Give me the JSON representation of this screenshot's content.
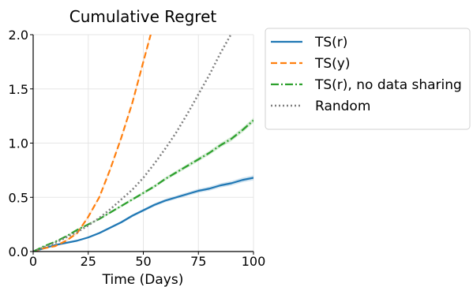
{
  "chart_data": {
    "type": "line",
    "title": "Cumulative Regret",
    "xlabel": "Time (Days)",
    "ylabel": "",
    "xlim": [
      0,
      100
    ],
    "ylim": [
      0,
      2.0
    ],
    "xticks": [
      0,
      25,
      50,
      75,
      100
    ],
    "xtick_labels": [
      "0",
      "25",
      "50",
      "75",
      "100"
    ],
    "yticks": [
      0,
      0.5,
      1.0,
      1.5,
      2.0
    ],
    "ytick_labels": [
      "0.0",
      "0.5",
      "1.0",
      "1.5",
      "2.0"
    ],
    "grid": true,
    "legend_position": "outside-right-top",
    "series": [
      {
        "name": "TS(r)",
        "color": "#1f77b4",
        "style": "solid",
        "band": true,
        "x": [
          0,
          5,
          10,
          15,
          20,
          25,
          30,
          35,
          40,
          45,
          50,
          55,
          60,
          65,
          70,
          75,
          80,
          85,
          90,
          95,
          100
        ],
        "y": [
          0,
          0.03,
          0.06,
          0.08,
          0.1,
          0.13,
          0.17,
          0.22,
          0.27,
          0.33,
          0.38,
          0.43,
          0.47,
          0.5,
          0.53,
          0.56,
          0.58,
          0.61,
          0.63,
          0.66,
          0.68
        ]
      },
      {
        "name": "TS(y)",
        "color": "#ff7f0e",
        "style": "dashed",
        "band": true,
        "x": [
          0,
          5,
          10,
          15,
          20,
          25,
          30,
          35,
          40,
          45,
          50,
          54
        ],
        "y": [
          0,
          0.03,
          0.05,
          0.1,
          0.17,
          0.32,
          0.5,
          0.76,
          1.05,
          1.37,
          1.75,
          2.05
        ]
      },
      {
        "name": "TS(r), no data sharing",
        "color": "#2ca02c",
        "style": "dashdot",
        "band": true,
        "x": [
          0,
          5,
          10,
          15,
          20,
          25,
          30,
          35,
          40,
          45,
          50,
          55,
          60,
          65,
          70,
          75,
          80,
          85,
          90,
          95,
          100
        ],
        "y": [
          0,
          0.05,
          0.09,
          0.14,
          0.2,
          0.25,
          0.3,
          0.36,
          0.42,
          0.48,
          0.54,
          0.6,
          0.67,
          0.73,
          0.79,
          0.85,
          0.91,
          0.98,
          1.04,
          1.12,
          1.21
        ]
      },
      {
        "name": "Random",
        "color": "#7f7f7f",
        "style": "dotted",
        "band": false,
        "x": [
          0,
          10,
          20,
          25,
          30,
          35,
          40,
          45,
          50,
          55,
          60,
          65,
          70,
          75,
          80,
          85,
          90,
          91
        ],
        "y": [
          0,
          0.08,
          0.18,
          0.24,
          0.31,
          0.39,
          0.48,
          0.57,
          0.68,
          0.81,
          0.95,
          1.1,
          1.27,
          1.45,
          1.63,
          1.83,
          2.01,
          2.05
        ]
      }
    ]
  }
}
